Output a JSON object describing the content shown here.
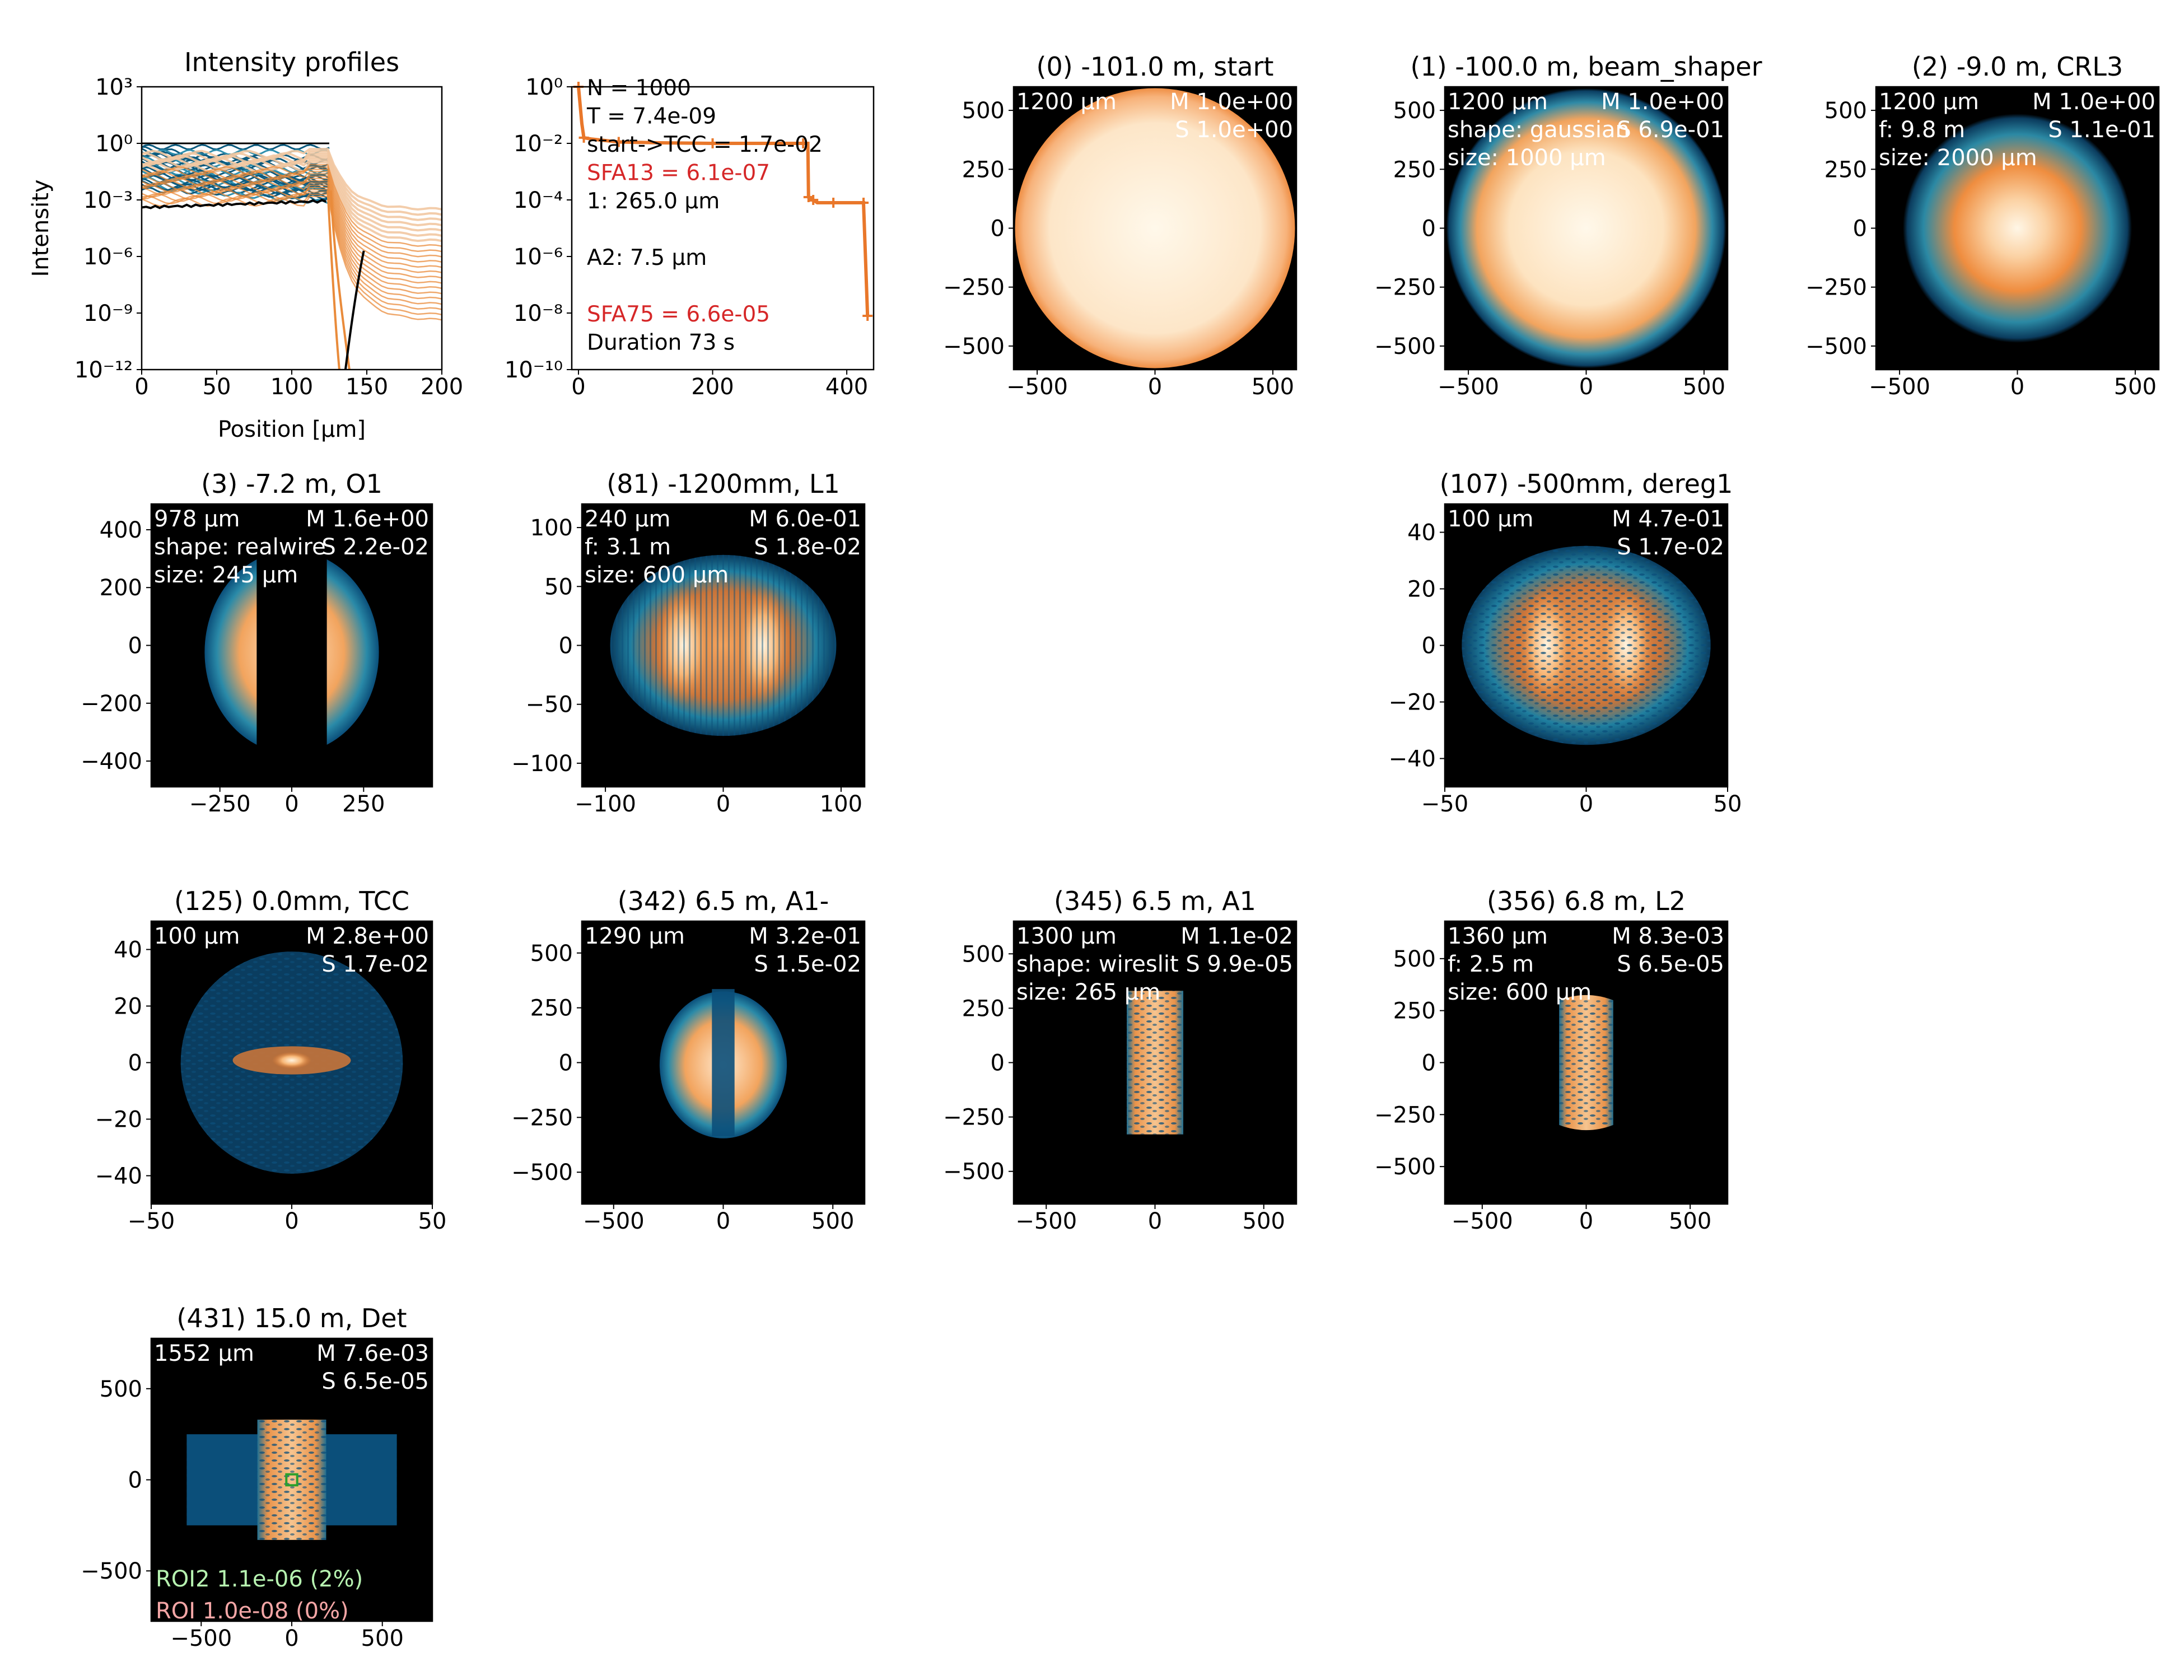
{
  "figure": {
    "colormap": [
      "#000000",
      "#0a4f7a",
      "#2a8aa8",
      "#e07a2e",
      "#f6a35c",
      "#fff6e6"
    ]
  },
  "chart_data": [
    {
      "type": "line",
      "title": "Intensity profiles",
      "xlabel": "Position [µm]",
      "ylabel": "Intensity",
      "xlim": [
        0,
        200
      ],
      "ylim_log10": [
        -12,
        3
      ],
      "xticks": [
        "0",
        "50",
        "100",
        "150",
        "200"
      ],
      "yticks": [
        "10³",
        "10⁰",
        "10⁻³",
        "10⁻⁶",
        "10⁻⁹",
        "10⁻¹²"
      ],
      "series_colors": [
        "#0b5a7e",
        "#e98b3b",
        "#f2c8a2",
        "#000000"
      ],
      "grid": false
    },
    {
      "type": "line",
      "title": "",
      "xlim": [
        -10,
        440
      ],
      "ylim_log10": [
        -10,
        0
      ],
      "xticks": [
        "0",
        "200",
        "400"
      ],
      "yticks": [
        "10⁰",
        "10⁻²",
        "10⁻⁴",
        "10⁻⁶",
        "10⁻⁸",
        "10⁻¹⁰"
      ],
      "series_color": "#e9772a",
      "x": [
        0,
        5,
        8,
        20,
        60,
        120,
        200,
        280,
        335,
        342,
        343,
        345,
        350,
        356,
        380,
        420,
        425,
        431
      ],
      "y_log10": [
        0,
        -1.3,
        -1.8,
        -1.85,
        -1.95,
        -1.98,
        -2.0,
        -2.0,
        -2.0,
        -2.0,
        -3.9,
        -4.0,
        -4.0,
        -4.1,
        -4.1,
        -4.1,
        -4.1,
        -8.1
      ],
      "annotations": [
        {
          "text": "N = 1000",
          "color": "#000000"
        },
        {
          "text": "T = 7.4e-09",
          "color": "#000000"
        },
        {
          "text": "start->TCC = 1.7e-02",
          "color": "#000000"
        },
        {
          "text": "SFA13 = 6.1e-07",
          "color": "#d62728"
        },
        {
          "text": "1: 265.0 µm",
          "color": "#000000"
        },
        {
          "text": "",
          "color": "#000000"
        },
        {
          "text": "A2: 7.5 µm",
          "color": "#000000"
        },
        {
          "text": "",
          "color": "#000000"
        },
        {
          "text": "SFA75 = 6.6e-05",
          "color": "#d62728"
        },
        {
          "text": "Duration 73 s",
          "color": "#000000"
        }
      ]
    },
    {
      "type": "heatmap",
      "title": "(0) -101.0 m, start",
      "lim": 600,
      "xticks": [
        "−500",
        "0",
        "500"
      ],
      "yticks": [
        "500",
        "250",
        "0",
        "−250",
        "−500"
      ],
      "labels_left": [
        "1200 µm"
      ],
      "labels_right": [
        "M 1.0e+00",
        "S 1.0e+00"
      ]
    },
    {
      "type": "heatmap",
      "title": "(1) -100.0 m, beam_shaper",
      "lim": 600,
      "xticks": [
        "−500",
        "0",
        "500"
      ],
      "yticks": [
        "500",
        "250",
        "0",
        "−250",
        "−500"
      ],
      "labels_left": [
        "1200 µm",
        "shape: gaussian",
        "size: 1000 µm"
      ],
      "labels_right": [
        "M 1.0e+00",
        "S 6.9e-01"
      ]
    },
    {
      "type": "heatmap",
      "title": "(2) -9.0 m, CRL3",
      "lim": 600,
      "xticks": [
        "−500",
        "0",
        "500"
      ],
      "yticks": [
        "500",
        "250",
        "0",
        "−250",
        "−500"
      ],
      "labels_left": [
        "1200 µm",
        "f: 9.8 m",
        "size: 2000 µm"
      ],
      "labels_right": [
        "M 1.0e+00",
        "S 1.1e-01"
      ]
    },
    {
      "type": "heatmap",
      "title": "(3) -7.2 m, O1",
      "lim": 489,
      "xticks": [
        "−250",
        "0",
        "250"
      ],
      "yticks": [
        "400",
        "200",
        "0",
        "−200",
        "−400"
      ],
      "labels_left": [
        "978 µm",
        "shape: realwire",
        "size: 245 µm"
      ],
      "labels_right": [
        "M 1.6e+00",
        "S 2.2e-02"
      ]
    },
    {
      "type": "heatmap",
      "title": "(81) -1200mm, L1",
      "lim": 120,
      "xticks": [
        "−100",
        "0",
        "100"
      ],
      "yticks": [
        "100",
        "50",
        "0",
        "−50",
        "−100"
      ],
      "labels_left": [
        "240 µm",
        "f: 3.1 m",
        "size: 600 µm"
      ],
      "labels_right": [
        "M 6.0e-01",
        "S 1.8e-02"
      ]
    },
    {
      "type": "heatmap",
      "title": "(107) -500mm, dereg1",
      "lim": 50,
      "xticks": [
        "−50",
        "0",
        "50"
      ],
      "yticks": [
        "40",
        "20",
        "0",
        "−20",
        "−40"
      ],
      "labels_left": [
        "100 µm"
      ],
      "labels_right": [
        "M 4.7e-01",
        "S 1.7e-02"
      ]
    },
    {
      "type": "heatmap",
      "title": "(125) 0.0mm, TCC",
      "lim": 50,
      "xticks": [
        "−50",
        "0",
        "50"
      ],
      "yticks": [
        "40",
        "20",
        "0",
        "−20",
        "−40"
      ],
      "labels_left": [
        "100 µm"
      ],
      "labels_right": [
        "M 2.8e+00",
        "S 1.7e-02"
      ]
    },
    {
      "type": "heatmap",
      "title": "(342) 6.5 m, A1-",
      "lim": 645,
      "xticks": [
        "−500",
        "0",
        "500"
      ],
      "yticks": [
        "500",
        "250",
        "0",
        "−250",
        "−500"
      ],
      "labels_left": [
        "1290 µm"
      ],
      "labels_right": [
        "M 3.2e-01",
        "S 1.5e-02"
      ]
    },
    {
      "type": "heatmap",
      "title": "(345) 6.5 m, A1",
      "lim": 650,
      "xticks": [
        "−500",
        "0",
        "500"
      ],
      "yticks": [
        "500",
        "250",
        "0",
        "−250",
        "−500"
      ],
      "labels_left": [
        "1300 µm",
        "shape: wireslit",
        "size: 265 µm"
      ],
      "labels_right": [
        "M 1.1e-02",
        "S 9.9e-05"
      ]
    },
    {
      "type": "heatmap",
      "title": "(356) 6.8 m, L2",
      "lim": 680,
      "xticks": [
        "−500",
        "0",
        "500"
      ],
      "yticks": [
        "500",
        "250",
        "0",
        "−250",
        "−500"
      ],
      "labels_left": [
        "1360 µm",
        "f: 2.5 m",
        "size: 600 µm"
      ],
      "labels_right": [
        "M 8.3e-03",
        "S 6.5e-05"
      ]
    },
    {
      "type": "heatmap",
      "title": "(431) 15.0 m, Det",
      "lim": 776,
      "xticks": [
        "−500",
        "0",
        "500"
      ],
      "yticks": [
        "500",
        "0",
        "−500"
      ],
      "labels_left": [
        "1552 µm"
      ],
      "labels_right": [
        "M 7.6e-03",
        "S 6.5e-05"
      ],
      "roi_labels": [
        {
          "text": "ROI2 1.1e-06 (2%)",
          "color": "#b6f2b0"
        },
        {
          "text": "ROI 1.0e-08 (0%)",
          "color": "#f4a6a6"
        }
      ]
    }
  ]
}
